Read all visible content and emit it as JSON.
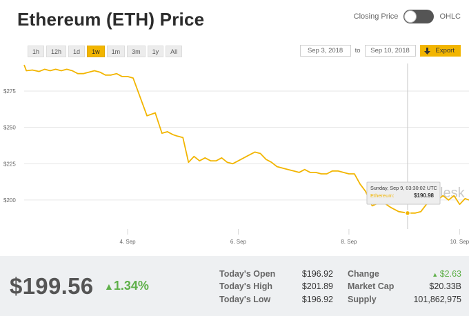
{
  "header": {
    "title": "Ethereum (ETH) Price"
  },
  "mode_switch": {
    "left_label": "Closing Price",
    "right_label": "OHLC"
  },
  "ranges": [
    "1h",
    "12h",
    "1d",
    "1w",
    "1m",
    "3m",
    "1y",
    "All"
  ],
  "active_range": "1w",
  "date_range": {
    "from": "Sep 3, 2018",
    "to_label": "to",
    "to": "Sep 10, 2018",
    "export_label": "Export",
    "export_icon": "download-arrow-icon"
  },
  "accent_color": "#f2b500",
  "watermark": "lesk",
  "tooltip": {
    "datetime": "Sunday, Sep 9, 03:30:02 UTC",
    "series": "Ethereum:",
    "value": "$190.98"
  },
  "stats": {
    "price": "$199.56",
    "change_pct": "1.34%",
    "today_open_label": "Today's Open",
    "today_open": "$196.92",
    "today_high_label": "Today's High",
    "today_high": "$201.89",
    "today_low_label": "Today's Low",
    "today_low": "$196.92",
    "change_label": "Change",
    "change": "$2.63",
    "market_cap_label": "Market Cap",
    "market_cap": "$20.33B",
    "supply_label": "Supply",
    "supply": "101,862,975"
  },
  "chart_data": {
    "type": "line",
    "ylim": [
      180,
      294
    ],
    "y_ticks": [
      200,
      225,
      250,
      275
    ],
    "y_tick_labels": [
      "$200",
      "$225",
      "$250",
      "$275"
    ],
    "x_ticks": [
      {
        "x": 1.0,
        "label": "4. Sep"
      },
      {
        "x": 3.0,
        "label": "6. Sep"
      },
      {
        "x": 5.0,
        "label": "8. Sep"
      },
      {
        "x": 7.0,
        "label": "10. Sep"
      }
    ],
    "xlim": [
      -0.87,
      7.17
    ],
    "grid": true,
    "line_color": "#f2b500",
    "crosshair_x": 6.06,
    "series": [
      {
        "points": [
          [
            -0.87,
            293
          ],
          [
            -0.83,
            289
          ],
          [
            -0.72,
            289.5
          ],
          [
            -0.6,
            288.5
          ],
          [
            -0.5,
            290
          ],
          [
            -0.4,
            289
          ],
          [
            -0.3,
            290
          ],
          [
            -0.2,
            289
          ],
          [
            -0.1,
            290
          ],
          [
            0.0,
            289
          ],
          [
            0.1,
            287
          ],
          [
            0.2,
            287
          ],
          [
            0.3,
            288
          ],
          [
            0.4,
            289
          ],
          [
            0.5,
            288
          ],
          [
            0.6,
            286
          ],
          [
            0.7,
            286
          ],
          [
            0.8,
            287
          ],
          [
            0.9,
            285
          ],
          [
            1.0,
            285
          ],
          [
            1.1,
            284
          ],
          [
            1.35,
            258
          ],
          [
            1.5,
            260
          ],
          [
            1.62,
            246
          ],
          [
            1.72,
            247
          ],
          [
            1.82,
            245
          ],
          [
            1.9,
            244
          ],
          [
            2.0,
            243
          ],
          [
            2.1,
            226
          ],
          [
            2.2,
            230
          ],
          [
            2.3,
            227
          ],
          [
            2.4,
            229
          ],
          [
            2.5,
            227
          ],
          [
            2.6,
            227
          ],
          [
            2.7,
            229
          ],
          [
            2.8,
            226
          ],
          [
            2.9,
            225
          ],
          [
            3.0,
            227
          ],
          [
            3.1,
            229
          ],
          [
            3.2,
            231
          ],
          [
            3.3,
            233
          ],
          [
            3.4,
            232
          ],
          [
            3.5,
            228
          ],
          [
            3.6,
            226
          ],
          [
            3.7,
            223
          ],
          [
            3.8,
            222
          ],
          [
            3.9,
            221
          ],
          [
            4.0,
            220
          ],
          [
            4.1,
            219
          ],
          [
            4.2,
            221
          ],
          [
            4.3,
            219
          ],
          [
            4.4,
            219
          ],
          [
            4.5,
            218
          ],
          [
            4.6,
            218
          ],
          [
            4.7,
            220
          ],
          [
            4.8,
            220
          ],
          [
            4.9,
            219
          ],
          [
            5.0,
            218
          ],
          [
            5.1,
            218
          ],
          [
            5.2,
            211
          ],
          [
            5.3,
            206
          ],
          [
            5.42,
            196
          ],
          [
            5.6,
            199
          ],
          [
            5.75,
            195
          ],
          [
            5.9,
            192
          ],
          [
            6.06,
            191
          ],
          [
            6.2,
            191
          ],
          [
            6.3,
            192
          ],
          [
            6.4,
            197
          ],
          [
            6.5,
            199
          ],
          [
            6.6,
            200
          ],
          [
            6.7,
            203
          ],
          [
            6.8,
            200
          ],
          [
            6.9,
            203
          ],
          [
            7.0,
            197
          ],
          [
            7.1,
            201
          ],
          [
            7.17,
            200
          ]
        ]
      }
    ]
  }
}
